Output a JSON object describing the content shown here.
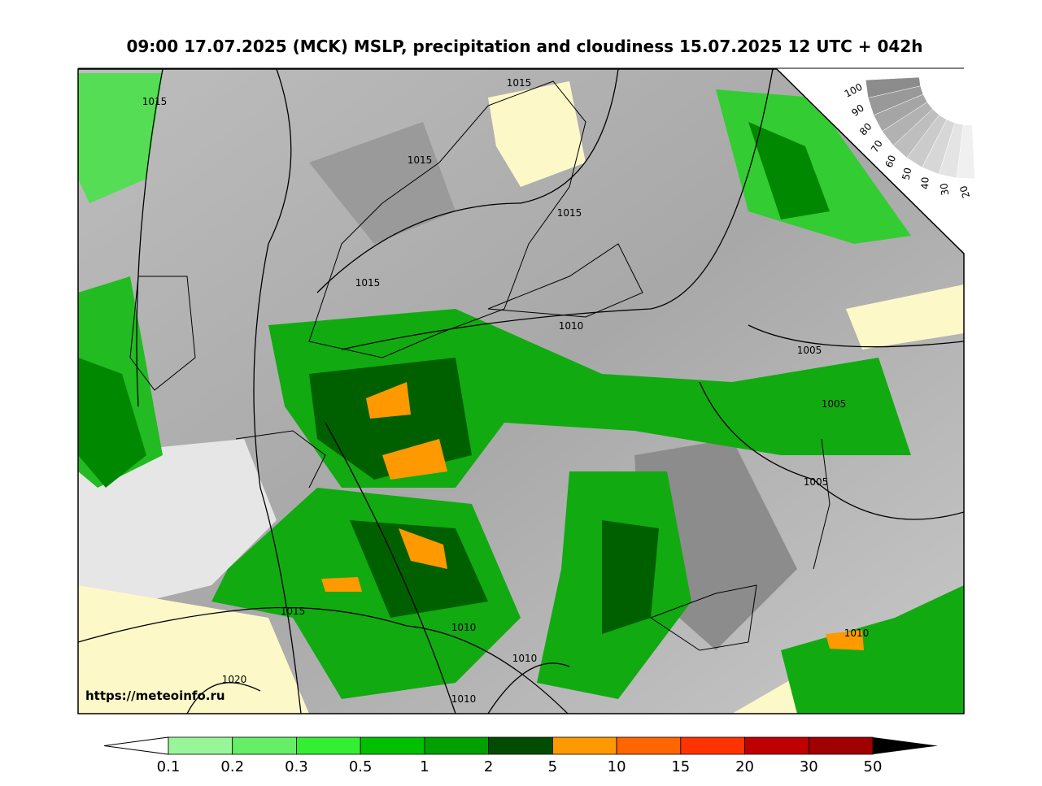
{
  "header": {
    "title": "09:00 17.07.2025 (MCK) MSLP, precipitation and cloudiness 15.07.2025 12 UTC + 042h"
  },
  "map": {
    "watermark": "https://meteoinfo.ru",
    "isobar_labels": [
      "1015",
      "1015",
      "1015",
      "1015",
      "1015",
      "1010",
      "1005",
      "1005",
      "1005",
      "1015",
      "1010",
      "1010",
      "1010",
      "1020",
      "1010"
    ]
  },
  "cloudiness_scale": {
    "labels": [
      "100",
      "90",
      "80",
      "70",
      "60",
      "50",
      "40",
      "30",
      "20"
    ]
  },
  "colorbar": {
    "labels": [
      "0.1",
      "0.2",
      "0.3",
      "0.5",
      "1",
      "2",
      "5",
      "10",
      "15",
      "20",
      "30",
      "50"
    ],
    "colors": [
      "#99f599",
      "#66ee66",
      "#33ee33",
      "#00c000",
      "#00a000",
      "#004c00",
      "#ff9900",
      "#ff6600",
      "#ff3300",
      "#c00000",
      "#a00000"
    ]
  }
}
